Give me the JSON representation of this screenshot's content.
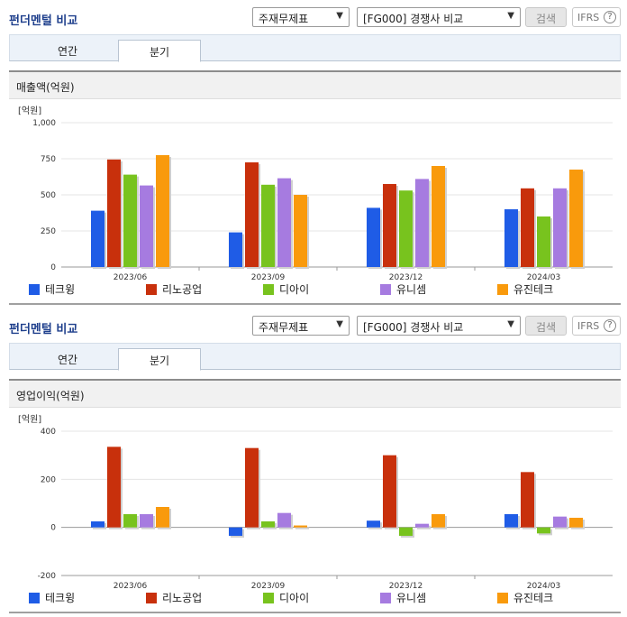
{
  "panels": [
    {
      "title": "펀더멘털 비교",
      "select_statement": "주재무제표",
      "select_compare": "[FG000] 경쟁사 비교",
      "search_label": "검색",
      "ifrs_label": "IFRS",
      "help_glyph": "?",
      "tab_annual": "연간",
      "tab_quarter": "분기",
      "section_label": "매출액(억원)"
    },
    {
      "title": "펀더멘털 비교",
      "select_statement": "주재무제표",
      "select_compare": "[FG000] 경쟁사 비교",
      "search_label": "검색",
      "ifrs_label": "IFRS",
      "help_glyph": "?",
      "tab_annual": "연간",
      "tab_quarter": "분기",
      "section_label": "영업이익(억원)"
    }
  ],
  "chart_data": [
    {
      "type": "bar",
      "ylabel": "[억원]",
      "ylim": [
        0,
        1000
      ],
      "yticks": [
        0,
        250,
        500,
        750,
        1000
      ],
      "ytick_labels": [
        "0",
        "250",
        "500",
        "750",
        "1,000"
      ],
      "categories": [
        "2023/06",
        "2023/09",
        "2023/12",
        "2024/03"
      ],
      "series": [
        {
          "name": "테크윙",
          "color": "#1f5ce6",
          "values": [
            390,
            240,
            410,
            400
          ]
        },
        {
          "name": "리노공업",
          "color": "#c8300c",
          "values": [
            745,
            725,
            575,
            545
          ]
        },
        {
          "name": "디아이",
          "color": "#78c31e",
          "values": [
            640,
            570,
            530,
            350
          ]
        },
        {
          "name": "유니셈",
          "color": "#a67be0",
          "values": [
            565,
            615,
            610,
            545
          ]
        },
        {
          "name": "유진테크",
          "color": "#f99a0c",
          "values": [
            775,
            500,
            700,
            675
          ]
        }
      ],
      "legend": "bottom"
    },
    {
      "type": "bar",
      "ylabel": "[억원]",
      "ylim": [
        -200,
        400
      ],
      "yticks": [
        -200,
        0,
        200,
        400
      ],
      "ytick_labels": [
        "-200",
        "0",
        "200",
        "400"
      ],
      "categories": [
        "2023/06",
        "2023/09",
        "2023/12",
        "2024/03"
      ],
      "series": [
        {
          "name": "테크윙",
          "color": "#1f5ce6",
          "values": [
            25,
            -35,
            28,
            55
          ]
        },
        {
          "name": "리노공업",
          "color": "#c8300c",
          "values": [
            335,
            330,
            300,
            230
          ]
        },
        {
          "name": "디아이",
          "color": "#78c31e",
          "values": [
            55,
            25,
            -35,
            -25
          ]
        },
        {
          "name": "유니셈",
          "color": "#a67be0",
          "values": [
            55,
            60,
            15,
            45
          ]
        },
        {
          "name": "유진테크",
          "color": "#f99a0c",
          "values": [
            85,
            8,
            55,
            40
          ]
        }
      ],
      "legend": "bottom"
    }
  ]
}
